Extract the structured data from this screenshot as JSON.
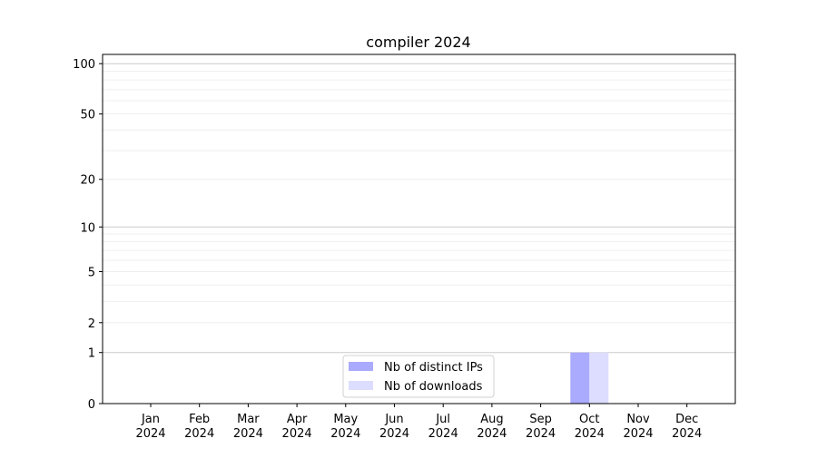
{
  "chart_data": {
    "type": "bar",
    "title": "compiler 2024",
    "xlabel": "",
    "ylabel": "",
    "y_scale": "log(1+y)",
    "ylim": [
      0,
      113
    ],
    "y_ticks": [
      0,
      1,
      2,
      5,
      10,
      20,
      50,
      100
    ],
    "y_minor_ticks": [
      3,
      4,
      6,
      7,
      8,
      9,
      30,
      40,
      60,
      70,
      80,
      90
    ],
    "grid": true,
    "legend_position": "bottom-center",
    "categories": [
      [
        "Jan",
        "2024"
      ],
      [
        "Feb",
        "2024"
      ],
      [
        "Mar",
        "2024"
      ],
      [
        "Apr",
        "2024"
      ],
      [
        "May",
        "2024"
      ],
      [
        "Jun",
        "2024"
      ],
      [
        "Jul",
        "2024"
      ],
      [
        "Aug",
        "2024"
      ],
      [
        "Sep",
        "2024"
      ],
      [
        "Oct",
        "2024"
      ],
      [
        "Nov",
        "2024"
      ],
      [
        "Dec",
        "2024"
      ]
    ],
    "series": [
      {
        "name": "Nb of distinct IPs",
        "color": "#aaaaff",
        "values": [
          0,
          0,
          0,
          0,
          0,
          0,
          0,
          0,
          0,
          1,
          0,
          0
        ]
      },
      {
        "name": "Nb of downloads",
        "color": "#ddddff",
        "values": [
          0,
          0,
          0,
          0,
          0,
          0,
          0,
          0,
          0,
          1,
          0,
          0
        ]
      }
    ]
  }
}
